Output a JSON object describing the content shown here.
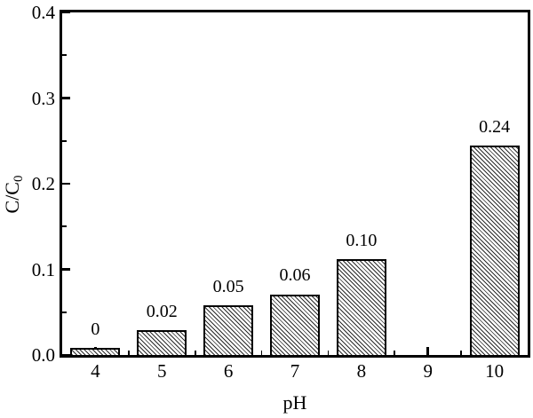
{
  "chart_data": {
    "type": "bar",
    "title": "",
    "xlabel": "pH",
    "ylabel_base": "C/C",
    "ylabel_sub": "0",
    "categories": [
      4,
      5,
      6,
      7,
      8,
      10
    ],
    "values": [
      0,
      0.02,
      0.05,
      0.06,
      0.1,
      0.24
    ],
    "bar_labels": [
      "0",
      "0.02",
      "0.05",
      "0.06",
      "0.10",
      "0.24"
    ],
    "rendered_heights": [
      0.008,
      0.029,
      0.058,
      0.071,
      0.112,
      0.245
    ],
    "xlim": [
      3.5,
      10.5
    ],
    "ylim": [
      0,
      0.4
    ],
    "xticks_major": [
      4,
      5,
      6,
      7,
      8,
      9,
      10
    ],
    "xtick_labels": [
      "4",
      "5",
      "6",
      "7",
      "8",
      "9",
      "10"
    ],
    "xticks_minor": [
      4.5,
      5.5,
      6.5,
      7.5,
      8.5,
      9.5
    ],
    "yticks_major": [
      0,
      0.1,
      0.2,
      0.3,
      0.4
    ],
    "ytick_labels": [
      "0.0",
      "0.1",
      "0.2",
      "0.3",
      "0.4"
    ],
    "yticks_minor": [
      0.05,
      0.15,
      0.25,
      0.35
    ],
    "bar_width_axis_units": 0.75,
    "hatch": "diagonal-backslash",
    "grid": false,
    "legend": null,
    "colors": {
      "background": "#ffffff",
      "frame": "#000000",
      "bar_fill": "#ffffff",
      "bar_edge": "#000000",
      "hatch": "#2b2b2b",
      "text": "#000000"
    }
  }
}
